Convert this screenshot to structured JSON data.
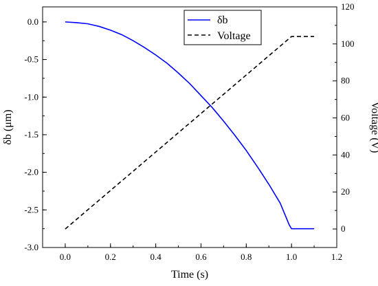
{
  "chart_data": {
    "type": "line",
    "title": "",
    "xlabel": "Time (s)",
    "ylabel_left": "δb (μm)",
    "ylabel_right": "Voltage (V)",
    "xlim": [
      -0.1,
      1.2
    ],
    "ylim_left": [
      -3.0,
      0.2
    ],
    "ylim_right": [
      -10,
      120
    ],
    "xticks": [
      0.0,
      0.2,
      0.4,
      0.6,
      0.8,
      1.0,
      1.2
    ],
    "xtick_labels": [
      "0.0",
      "0.2",
      "0.4",
      "0.6",
      "0.8",
      "1.0",
      "1.2"
    ],
    "yticks_left": [
      0.0,
      -0.5,
      -1.0,
      -1.5,
      -2.0,
      -2.5,
      -3.0
    ],
    "ytick_labels_left": [
      "0.0",
      "-0.5",
      "-1.0",
      "-1.5",
      "-2.0",
      "-2.5",
      "-3.0"
    ],
    "yticks_right": [
      0,
      20,
      40,
      60,
      80,
      100,
      120
    ],
    "ytick_labels_right": [
      "0",
      "20",
      "40",
      "60",
      "80",
      "100",
      "120"
    ],
    "grid": false,
    "legend_position": "top-center",
    "series": [
      {
        "name": "δb",
        "axis": "left",
        "color": "#0000ff",
        "style": "solid",
        "x": [
          0.0,
          0.05,
          0.1,
          0.15,
          0.2,
          0.25,
          0.3,
          0.35,
          0.4,
          0.45,
          0.5,
          0.55,
          0.6,
          0.65,
          0.7,
          0.75,
          0.8,
          0.85,
          0.9,
          0.95,
          0.99,
          1.0,
          1.05,
          1.1
        ],
        "y": [
          0.0,
          -0.01,
          -0.025,
          -0.06,
          -0.11,
          -0.17,
          -0.25,
          -0.34,
          -0.44,
          -0.55,
          -0.68,
          -0.82,
          -0.98,
          -1.14,
          -1.32,
          -1.51,
          -1.71,
          -1.93,
          -2.16,
          -2.41,
          -2.7,
          -2.75,
          -2.75,
          -2.75
        ]
      },
      {
        "name": "Voltage",
        "axis": "right",
        "color": "#000000",
        "style": "dashed",
        "x": [
          0.0,
          1.0,
          1.1
        ],
        "y": [
          0,
          104,
          104
        ]
      }
    ]
  }
}
